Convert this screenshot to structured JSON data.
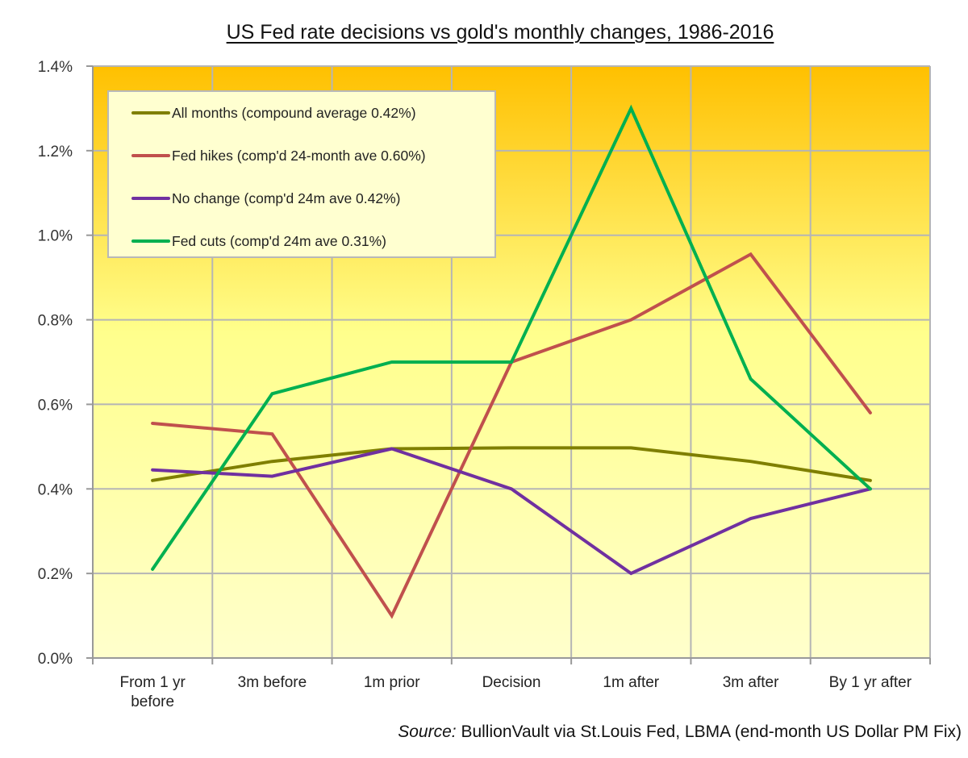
{
  "chart_data": {
    "type": "line",
    "title": "US Fed rate decisions vs gold's monthly changes, 1986-2016",
    "xlabel": "",
    "ylabel": "",
    "ylim": [
      0,
      1.4
    ],
    "yticks": [
      0.0,
      0.2,
      0.4,
      0.6,
      0.8,
      1.0,
      1.2,
      1.4
    ],
    "ytick_labels": [
      "0.0%",
      "0.2%",
      "0.4%",
      "0.6%",
      "0.8%",
      "1.0%",
      "1.2%",
      "1.4%"
    ],
    "grid": true,
    "legend_position": "top-left",
    "categories": [
      [
        "From 1 yr",
        "before"
      ],
      [
        "3m before"
      ],
      [
        "1m prior"
      ],
      [
        "Decision"
      ],
      [
        "1m after"
      ],
      [
        "3m after"
      ],
      [
        "By 1 yr after"
      ]
    ],
    "series": [
      {
        "name": "All months (compound average 0.42%)",
        "color": "#7f7f00",
        "values": [
          0.42,
          0.465,
          0.495,
          0.497,
          0.497,
          0.465,
          0.42
        ]
      },
      {
        "name": "Fed hikes (comp'd 24-month ave 0.60%)",
        "color": "#c0504d",
        "values": [
          0.555,
          0.53,
          0.1,
          0.7,
          0.8,
          0.955,
          0.58
        ]
      },
      {
        "name": "No change (comp'd 24m ave 0.42%)",
        "color": "#7030a0",
        "values": [
          0.445,
          0.43,
          0.495,
          0.4,
          0.2,
          0.33,
          0.4
        ]
      },
      {
        "name": "Fed cuts (comp'd 24m ave 0.31%)",
        "color": "#00b050",
        "values": [
          0.21,
          0.625,
          0.7,
          0.7,
          1.3,
          0.66,
          0.4
        ]
      }
    ],
    "background_gradient": [
      "#ffc000",
      "#ffff99",
      "#ffffcc"
    ],
    "source_label": "Source:",
    "source_text": " BullionVault via St.Louis Fed, LBMA (end-month  US Dollar PM Fix)"
  }
}
